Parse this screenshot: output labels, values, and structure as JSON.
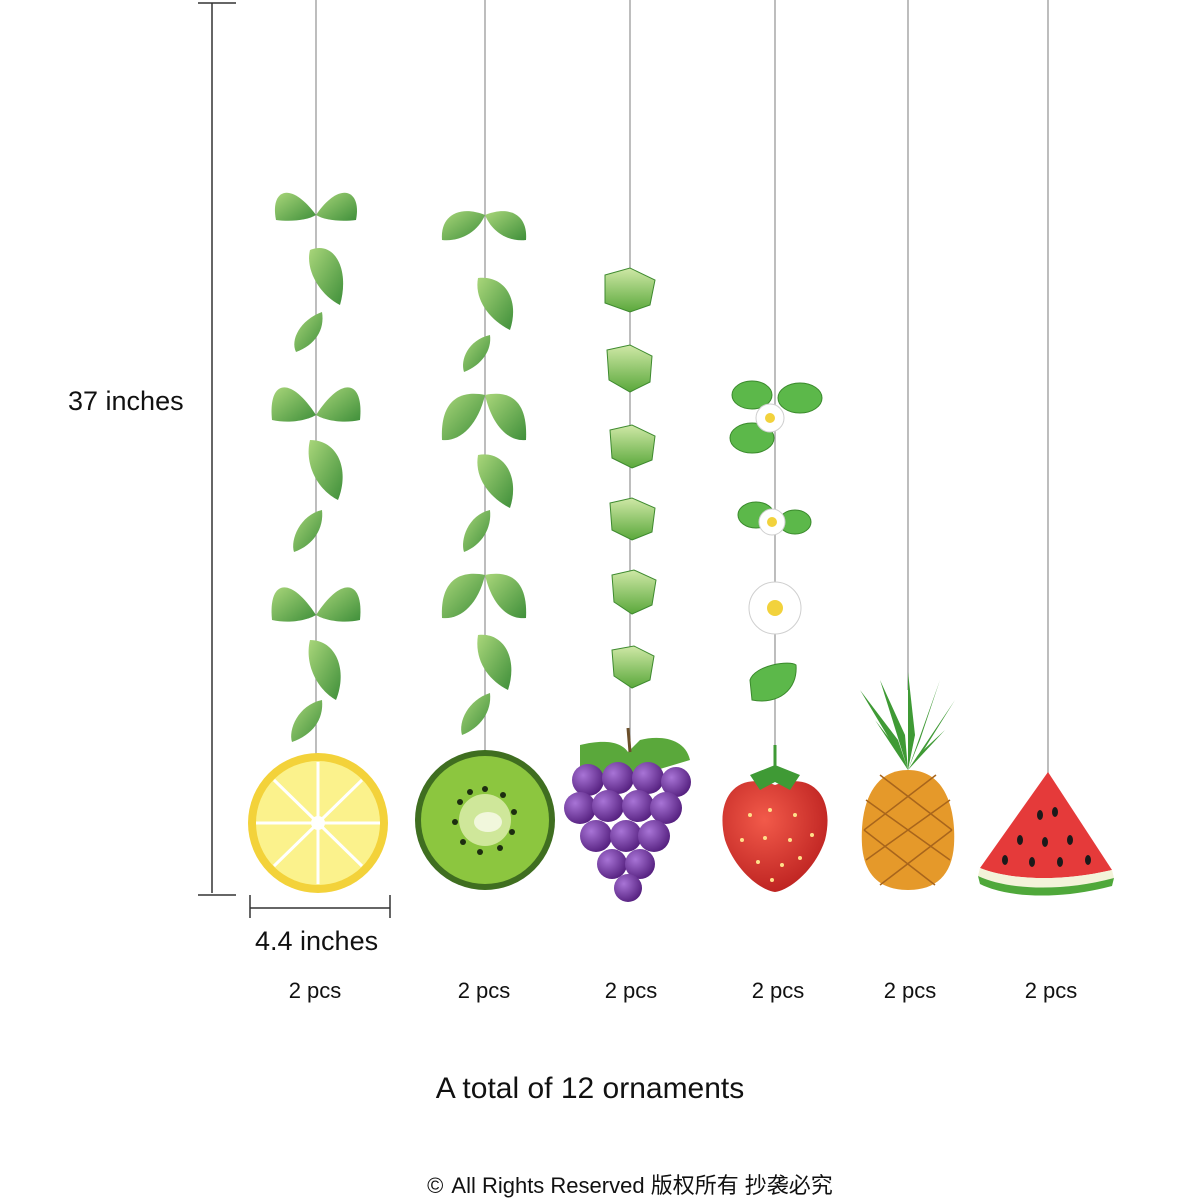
{
  "dimensions": {
    "height_label": "37 inches",
    "width_label": "4.4 inches"
  },
  "ornaments": [
    {
      "name": "lemon",
      "quantity": "2 pcs"
    },
    {
      "name": "kiwi",
      "quantity": "2 pcs"
    },
    {
      "name": "grapes",
      "quantity": "2 pcs"
    },
    {
      "name": "strawberry",
      "quantity": "2 pcs"
    },
    {
      "name": "pineapple",
      "quantity": "2 pcs"
    },
    {
      "name": "watermelon",
      "quantity": "2 pcs"
    }
  ],
  "summary": "A total of 12 ornaments",
  "copyright": {
    "symbol": "©",
    "text": "All Rights Reserved 版权所有 抄袭必究"
  },
  "colors": {
    "leaf_green": "#5fae3e",
    "lemon_yellow": "#f7e34a",
    "kiwi_green": "#8cc63f",
    "grape_purple": "#6a2a9a",
    "strawberry_red": "#d92b2b",
    "pineapple_orange": "#e5992a",
    "watermelon_red": "#e53a3a"
  }
}
